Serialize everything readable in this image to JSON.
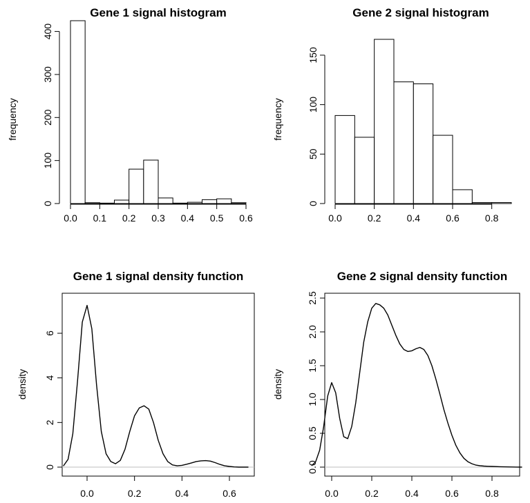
{
  "chart_data": [
    {
      "id": "p1",
      "type": "bar",
      "title": "Gene 1 signal histogram",
      "xlabel": "",
      "ylabel": "frequency",
      "bin_edges": [
        0.0,
        0.05,
        0.1,
        0.15,
        0.2,
        0.25,
        0.3,
        0.35,
        0.4,
        0.45,
        0.5,
        0.55,
        0.6
      ],
      "values": [
        425,
        2,
        1,
        8,
        80,
        101,
        13,
        1,
        3,
        9,
        11,
        2
      ],
      "xlim": [
        0.0,
        0.6
      ],
      "ylim": [
        0,
        425
      ],
      "x_ticks": [
        0.0,
        0.1,
        0.2,
        0.3,
        0.4,
        0.5,
        0.6
      ],
      "x_tick_labels": [
        "0.0",
        "0.1",
        "0.2",
        "0.3",
        "0.4",
        "0.5",
        "0.6"
      ],
      "y_ticks": [
        0,
        100,
        200,
        300,
        400
      ],
      "y_tick_labels": [
        "0",
        "100",
        "200",
        "300",
        "400"
      ]
    },
    {
      "id": "p2",
      "type": "bar",
      "title": "Gene 2 signal histogram",
      "xlabel": "",
      "ylabel": "frequency",
      "bin_edges": [
        0.0,
        0.1,
        0.2,
        0.3,
        0.4,
        0.5,
        0.6,
        0.7,
        0.8,
        0.9
      ],
      "values": [
        89,
        67,
        166,
        123,
        121,
        69,
        14,
        1,
        1
      ],
      "xlim": [
        0.0,
        0.9
      ],
      "ylim": [
        0,
        166
      ],
      "x_ticks": [
        0.0,
        0.2,
        0.4,
        0.6,
        0.8
      ],
      "x_tick_labels": [
        "0.0",
        "0.2",
        "0.4",
        "0.6",
        "0.8"
      ],
      "y_ticks": [
        0,
        50,
        100,
        150
      ],
      "y_tick_labels": [
        "0",
        "50",
        "100",
        "150"
      ]
    },
    {
      "id": "p3",
      "type": "line",
      "title": "Gene 1 signal density function",
      "xlabel": "",
      "ylabel": "density",
      "x": [
        -0.1,
        -0.08,
        -0.06,
        -0.04,
        -0.02,
        0.0,
        0.02,
        0.04,
        0.06,
        0.08,
        0.1,
        0.12,
        0.14,
        0.16,
        0.18,
        0.2,
        0.22,
        0.24,
        0.26,
        0.28,
        0.3,
        0.32,
        0.34,
        0.36,
        0.38,
        0.4,
        0.42,
        0.44,
        0.46,
        0.48,
        0.5,
        0.52,
        0.54,
        0.56,
        0.58,
        0.6,
        0.62,
        0.64,
        0.66,
        0.68
      ],
      "y": [
        0.05,
        0.35,
        1.5,
        3.9,
        6.5,
        7.25,
        6.2,
        3.7,
        1.6,
        0.6,
        0.25,
        0.15,
        0.3,
        0.8,
        1.6,
        2.3,
        2.65,
        2.75,
        2.6,
        2.0,
        1.2,
        0.6,
        0.25,
        0.1,
        0.06,
        0.08,
        0.13,
        0.19,
        0.25,
        0.28,
        0.29,
        0.27,
        0.2,
        0.12,
        0.06,
        0.03,
        0.01,
        0.0,
        0.0,
        0.0
      ],
      "xlim": [
        -0.1,
        0.68
      ],
      "ylim": [
        0,
        7.25
      ],
      "x_ticks": [
        0.0,
        0.2,
        0.4,
        0.6
      ],
      "x_tick_labels": [
        "0.0",
        "0.2",
        "0.4",
        "0.6"
      ],
      "y_ticks": [
        0,
        2,
        4,
        6
      ],
      "y_tick_labels": [
        "0",
        "2",
        "4",
        "6"
      ]
    },
    {
      "id": "p4",
      "type": "line",
      "title": "Gene 2 signal density function",
      "xlabel": "",
      "ylabel": "density",
      "x": [
        -0.1,
        -0.08,
        -0.06,
        -0.04,
        -0.02,
        0.0,
        0.02,
        0.04,
        0.06,
        0.08,
        0.1,
        0.12,
        0.14,
        0.16,
        0.18,
        0.2,
        0.22,
        0.24,
        0.26,
        0.28,
        0.3,
        0.32,
        0.34,
        0.36,
        0.38,
        0.4,
        0.42,
        0.44,
        0.46,
        0.48,
        0.5,
        0.52,
        0.54,
        0.56,
        0.58,
        0.6,
        0.62,
        0.64,
        0.66,
        0.68,
        0.7,
        0.72,
        0.74,
        0.76,
        0.78,
        0.8,
        0.84,
        0.88,
        0.92,
        0.95
      ],
      "y": [
        0.02,
        0.08,
        0.25,
        0.6,
        1.05,
        1.25,
        1.1,
        0.72,
        0.45,
        0.42,
        0.6,
        0.95,
        1.4,
        1.85,
        2.15,
        2.35,
        2.42,
        2.4,
        2.35,
        2.25,
        2.1,
        1.95,
        1.82,
        1.74,
        1.71,
        1.72,
        1.75,
        1.77,
        1.74,
        1.65,
        1.5,
        1.3,
        1.08,
        0.85,
        0.65,
        0.47,
        0.32,
        0.21,
        0.13,
        0.08,
        0.05,
        0.03,
        0.02,
        0.015,
        0.012,
        0.01,
        0.006,
        0.003,
        0.001,
        0.0
      ],
      "xlim": [
        -0.1,
        0.95
      ],
      "ylim": [
        0,
        2.5
      ],
      "x_ticks": [
        0.0,
        0.2,
        0.4,
        0.6,
        0.8
      ],
      "x_tick_labels": [
        "0.0",
        "0.2",
        "0.4",
        "0.6",
        "0.8"
      ],
      "y_ticks": [
        0.0,
        0.5,
        1.0,
        1.5,
        2.0,
        2.5
      ],
      "y_tick_labels": [
        "0.0",
        "0.5",
        "1.0",
        "1.5",
        "2.0",
        "2.5"
      ]
    }
  ],
  "colors": {
    "ink": "#000000",
    "baseline": "#bebebe",
    "fill": "#ffffff"
  }
}
